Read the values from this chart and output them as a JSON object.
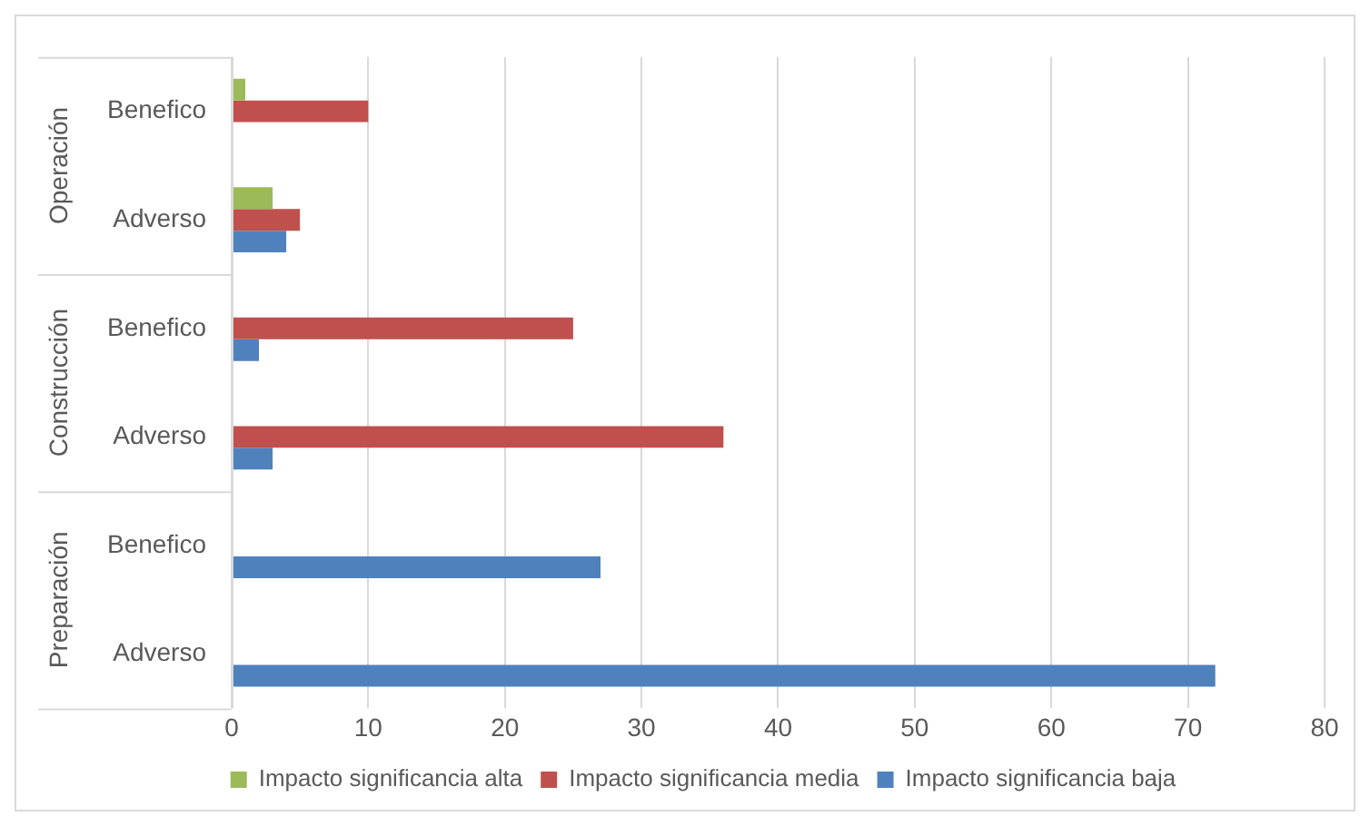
{
  "chart_data": {
    "type": "bar",
    "orientation": "horizontal",
    "categories": [
      "Benefico",
      "Adverso",
      "Benefico",
      "Adverso",
      "Benefico",
      "Adverso"
    ],
    "annotations": [
      "Operación",
      "Construcción",
      "Preparación"
    ],
    "series": [
      {
        "name": "Impacto significancia alta",
        "color": "#9bbb59",
        "values": [
          1,
          3,
          null,
          null,
          null,
          null
        ]
      },
      {
        "name": "Impacto significancia media",
        "color": "#c0504d",
        "values": [
          10,
          5,
          25,
          36,
          null,
          null
        ]
      },
      {
        "name": "Impacto significancia baja",
        "color": "#4f81bd",
        "values": [
          null,
          4,
          2,
          3,
          27,
          72
        ]
      }
    ],
    "xlim": [
      0,
      80
    ],
    "xticks": [
      0,
      10,
      20,
      30,
      40,
      50,
      60,
      70,
      80
    ],
    "grid": "x",
    "legend": "bottom"
  }
}
